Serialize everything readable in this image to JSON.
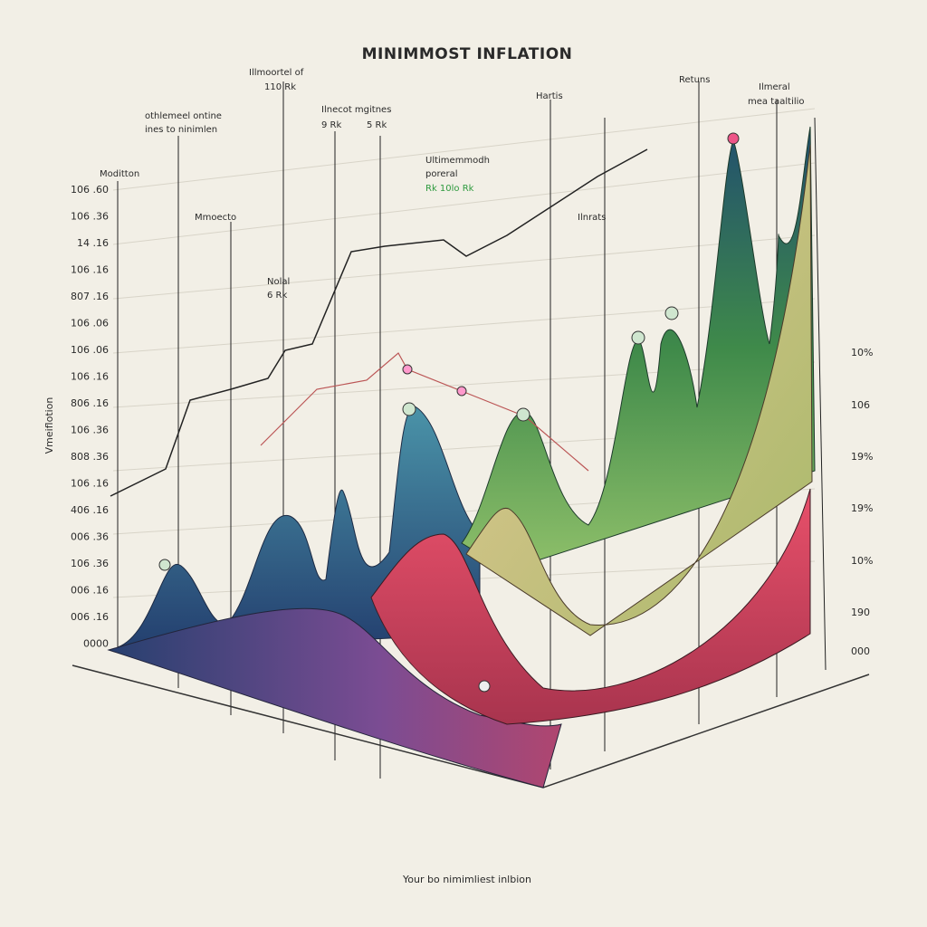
{
  "header": {
    "title": "MINIMMOST INFLATION"
  },
  "caption": "Your bo nimimliest inlbion",
  "axis_title": "Vmeiflotion",
  "left_axis": [
    "106 .60",
    "106 .36",
    "14 .16",
    "106 .16",
    "807 .16",
    "106 .06",
    "106 .06",
    "106 .16",
    "806 .16",
    "106 .36",
    "808 .36",
    "106 .16",
    "406 .16",
    "006 .36",
    "106 .36",
    "006 .16",
    "006 .16",
    "0000"
  ],
  "right_axis": [
    "10%",
    "106",
    "19%",
    "19%",
    "10%",
    "190",
    "000"
  ],
  "annotations": [
    "Moditton",
    "othlemeel ontine",
    "ines to ninimlen",
    "Illmoortel of",
    "110 Rk",
    "Ilnecot mgitnes",
    "9 Rk",
    "5 Rk",
    "Mmoecto",
    "Ultimemmodh",
    "poreral",
    "Rk 10lo Rk",
    "Hartis",
    "Retuns",
    "Ilmeral",
    "mea taaltilio",
    "Ilnrats",
    "Nolal",
    "6 Rk"
  ]
}
